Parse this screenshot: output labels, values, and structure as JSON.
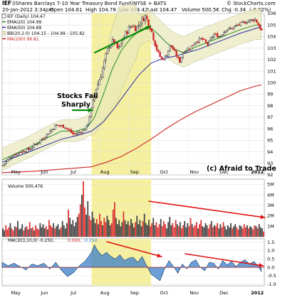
{
  "header": {
    "symbol": "IEF",
    "name": "(iShares Barclays 7-10 Year Treasury Bond Fund)",
    "exchange": "NYSE + BATS",
    "watermark": "© StockCharts.com",
    "date": "20-Jan-2012 3:34pm",
    "open": "Open 104.61",
    "high": "High 104.78",
    "low": "Low 104.42",
    "last": "Last 104.47",
    "volume": "Volume 500.5K",
    "chg": "Chg -0.34",
    "chg_pct": "(-0.32%)",
    "chg_color": "#cc0000"
  },
  "legend": {
    "price": "IEF (Daily) 104.47",
    "ema20": "EMA(20) 104.99",
    "ema50": "EMA(50) 104.89",
    "bb": "BB(20,2.0) 104.15 - 104.99 - 105.82",
    "ma200": "MA(200) 99.81",
    "volume": "Volume 500,476",
    "macd_label": "MACD(3,10,0) -0.250,",
    "macd_signal": "0.000,",
    "macd_hist": "-0.250"
  },
  "annotations": {
    "stocks_fall": [
      "Stocks Fall",
      "Sharply"
    ],
    "copyright": "(c) Afraid to Trade"
  },
  "colors": {
    "highlight": "#f5f0a0",
    "ema20": "#2a8a2a",
    "ema50": "#2a2aa0",
    "ma200": "#cc2222",
    "bb_fill": "#e8e8bc",
    "up_volume": "#444444",
    "down_volume": "#dd3333",
    "macd_hist": "#3a7fc8",
    "arrow_green": "#0a8a0a",
    "arrow_red": "#e01010"
  },
  "chart_data": [
    {
      "type": "line",
      "title": "IEF (Daily)",
      "x_ticks": [
        "May",
        "Jun",
        "Jul",
        "Aug",
        "Sep",
        "Oct",
        "Nov",
        "Dec",
        "2012"
      ],
      "y_ticks": [
        92,
        93,
        94,
        95,
        96,
        97,
        98,
        99,
        100,
        101,
        102,
        103,
        104,
        105,
        106
      ],
      "ylim": [
        92,
        106
      ],
      "x_range_months": [
        0,
        8.8
      ],
      "series": [
        {
          "name": "IEF (Daily) 104.47",
          "x": [
            0,
            0.3,
            0.6,
            0.9,
            1.2,
            1.5,
            1.8,
            2.1,
            2.4,
            2.7,
            2.85,
            3.0,
            3.15,
            3.3,
            3.45,
            3.6,
            3.75,
            3.9,
            4.05,
            4.2,
            4.35,
            4.5,
            4.65,
            4.8,
            4.95,
            5.05,
            5.2,
            5.35,
            5.5,
            5.65,
            5.8,
            5.95,
            6.1,
            6.3,
            6.5,
            6.7,
            6.9,
            7.1,
            7.3,
            7.5,
            7.7,
            7.9,
            8.1,
            8.3,
            8.5,
            8.7
          ],
          "values": [
            92.8,
            93.6,
            94.0,
            94.2,
            94.8,
            95.5,
            96.3,
            96.2,
            95.5,
            95.8,
            96.2,
            97.8,
            99.5,
            100.5,
            102.0,
            103.3,
            103.6,
            102.8,
            103.8,
            104.5,
            105.0,
            104.7,
            105.3,
            105.8,
            105.0,
            104.2,
            102.8,
            102.0,
            102.3,
            103.3,
            102.6,
            101.8,
            102.8,
            103.0,
            103.6,
            103.8,
            103.3,
            104.2,
            104.0,
            104.6,
            104.7,
            105.0,
            105.2,
            105.4,
            105.5,
            104.5
          ]
        },
        {
          "name": "EMA(20) 104.99",
          "x": [
            0,
            0.5,
            1,
            1.5,
            2,
            2.5,
            2.85,
            3.1,
            3.4,
            3.7,
            4.0,
            4.3,
            4.6,
            4.9,
            5.2,
            5.5,
            5.8,
            6.1,
            6.5,
            7.0,
            7.5,
            8.0,
            8.5,
            8.7
          ],
          "values": [
            93.3,
            93.9,
            94.5,
            95.2,
            95.8,
            95.8,
            96.1,
            97.0,
            99.0,
            101.2,
            102.8,
            103.8,
            104.5,
            104.9,
            104.3,
            103.5,
            102.9,
            102.6,
            103.1,
            103.6,
            104.1,
            104.6,
            105.0,
            104.99
          ]
        },
        {
          "name": "EMA(50) 104.89",
          "x": [
            0,
            0.5,
            1,
            1.5,
            2,
            2.5,
            3.0,
            3.4,
            3.8,
            4.2,
            4.6,
            5.0,
            5.4,
            5.8,
            6.2,
            6.6,
            7.0,
            7.5,
            8.0,
            8.5,
            8.7
          ],
          "values": [
            93.1,
            93.6,
            94.1,
            94.6,
            95.1,
            95.4,
            95.8,
            96.6,
            97.9,
            99.3,
            100.7,
            101.7,
            102.1,
            102.3,
            102.6,
            102.9,
            103.3,
            103.8,
            104.3,
            104.7,
            104.89
          ]
        },
        {
          "name": "MA(200) 99.81",
          "x": [
            0,
            1,
            2,
            2.5,
            3.0,
            3.5,
            4.0,
            4.5,
            5.0,
            5.5,
            6.0,
            6.5,
            7.0,
            7.5,
            8.0,
            8.5,
            8.7
          ],
          "values": [
            92.2,
            92.3,
            92.5,
            92.6,
            92.7,
            93.1,
            93.6,
            94.3,
            95.1,
            96.0,
            96.8,
            97.5,
            98.1,
            98.7,
            99.3,
            99.7,
            99.81
          ]
        }
      ]
    },
    {
      "type": "bar",
      "title": "Volume",
      "y_ticks": [
        "1M",
        "2M",
        "3M",
        "4M",
        "5M"
      ],
      "ylim": [
        0,
        5.5
      ],
      "units": "millions of shares",
      "x_range_months": [
        0,
        8.8
      ],
      "values": [
        0.8,
        0.6,
        1.1,
        0.7,
        0.9,
        1.3,
        0.8,
        0.6,
        1.0,
        0.9,
        1.5,
        0.7,
        0.8,
        1.2,
        0.6,
        0.9,
        1.0,
        0.7,
        1.4,
        0.8,
        0.9,
        0.6,
        1.1,
        0.8,
        0.7,
        1.3,
        0.9,
        1.2,
        0.8,
        1.0,
        0.7,
        1.6,
        1.1,
        0.9,
        1.3,
        0.8,
        1.0,
        1.2,
        0.7,
        0.9,
        1.5,
        1.1,
        0.8,
        1.3,
        2.6,
        1.8,
        1.2,
        1.6,
        1.0,
        1.4,
        1.9,
        2.2,
        3.1,
        4.0,
        5.3,
        2.8,
        2.1,
        3.4,
        2.0,
        1.6,
        2.4,
        1.8,
        1.3,
        1.7,
        1.2,
        2.2,
        1.5,
        1.1,
        1.8,
        1.4,
        2.0,
        1.6,
        1.1,
        1.3,
        2.6,
        3.3,
        1.8,
        1.2,
        1.6,
        1.0,
        1.4,
        2.4,
        1.6,
        1.2,
        1.5,
        1.1,
        1.7,
        1.3,
        0.9,
        1.4,
        2.0,
        1.2,
        1.6,
        1.0,
        1.5,
        2.2,
        1.3,
        1.1,
        1.6,
        1.0,
        1.3,
        1.8,
        1.1,
        1.4,
        0.9,
        1.2,
        1.7,
        1.0,
        1.5,
        1.2,
        0.8,
        1.4,
        1.9,
        1.1,
        1.3,
        0.9,
        1.6,
        1.2,
        1.0,
        1.4,
        0.8,
        1.1,
        1.5,
        0.9,
        1.3,
        1.0,
        1.8,
        1.2,
        0.9,
        1.1,
        1.4,
        0.8,
        1.2,
        1.6,
        1.0,
        0.9,
        1.3,
        1.1,
        0.8,
        1.2,
        1.5,
        0.9,
        1.1,
        1.0,
        1.3,
        0.8,
        1.2,
        0.9,
        1.4,
        1.0,
        0.7,
        1.1,
        0.9,
        1.3,
        0.8,
        1.0,
        1.2,
        0.9,
        0.7,
        1.1,
        1.0,
        0.8,
        1.2,
        0.9,
        1.1,
        0.8,
        1.0,
        0.9,
        0.7,
        1.1,
        1.0,
        0.8,
        1.2,
        0.9,
        0.8,
        0.5
      ],
      "legend": "Volume 500,476"
    },
    {
      "type": "area",
      "title": "MACD(3,10,0)",
      "y_ticks": [
        -1.0,
        -0.5,
        0.0,
        0.5,
        1.0,
        1.5
      ],
      "ylim": [
        -1.1,
        1.7
      ],
      "x_range_months": [
        0,
        8.8
      ],
      "x": [
        0,
        0.2,
        0.4,
        0.6,
        0.8,
        1.0,
        1.2,
        1.4,
        1.6,
        1.8,
        2.0,
        2.2,
        2.4,
        2.6,
        2.8,
        3.0,
        3.1,
        3.2,
        3.35,
        3.5,
        3.65,
        3.8,
        3.95,
        4.1,
        4.25,
        4.4,
        4.55,
        4.7,
        4.85,
        5.0,
        5.15,
        5.3,
        5.45,
        5.6,
        5.75,
        5.9,
        6.05,
        6.2,
        6.35,
        6.5,
        6.65,
        6.8,
        6.95,
        7.1,
        7.25,
        7.4,
        7.55,
        7.7,
        7.85,
        8.0,
        8.15,
        8.3,
        8.45,
        8.6,
        8.7
      ],
      "values": [
        0.3,
        0.1,
        0.25,
        0.05,
        -0.15,
        0.2,
        0.1,
        0.25,
        -0.1,
        0.3,
        -0.2,
        -0.55,
        -0.3,
        0.1,
        0.4,
        0.9,
        1.35,
        1.0,
        0.7,
        0.9,
        0.65,
        0.5,
        0.75,
        0.4,
        0.55,
        0.6,
        0.3,
        0.65,
        0.1,
        -0.4,
        -0.6,
        -0.8,
        -0.1,
        0.4,
        0.05,
        -0.35,
        0.2,
        -0.1,
        0.3,
        0.45,
        0.0,
        -0.2,
        0.3,
        0.25,
        -0.1,
        0.4,
        0.15,
        0.35,
        0.05,
        0.3,
        0.45,
        0.2,
        0.35,
        0.05,
        -0.25
      ],
      "legend": [
        "MACD(3,10,0) -0.250,",
        "0.000,",
        "-0.250"
      ]
    }
  ]
}
